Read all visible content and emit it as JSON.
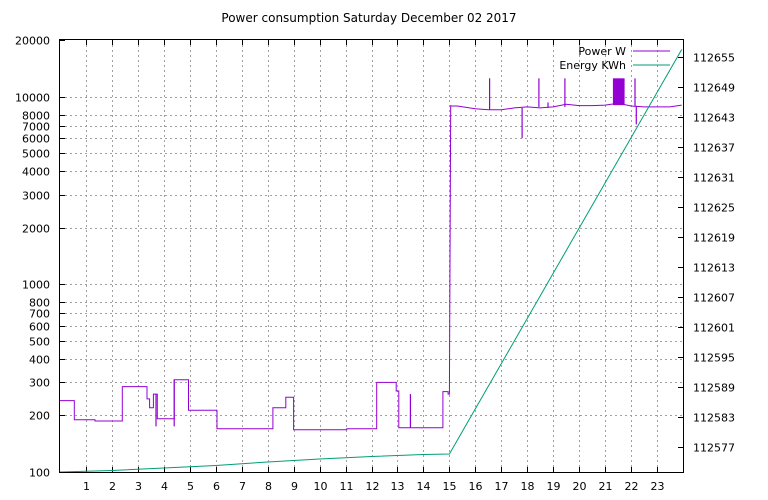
{
  "chart_data": {
    "type": "line",
    "title": "Power consumption Saturday December 02 2017",
    "xlabel": "",
    "ylabel": "",
    "y2label": "",
    "xlim": [
      0,
      24
    ],
    "ylim": [
      100,
      20000
    ],
    "y_scale": "log",
    "y2lim": [
      112572.0,
      112658.5
    ],
    "grid": true,
    "legend_position": "top-right",
    "x_ticks": [
      1,
      2,
      3,
      4,
      5,
      6,
      7,
      8,
      9,
      10,
      11,
      12,
      13,
      14,
      15,
      16,
      17,
      18,
      19,
      20,
      21,
      22,
      23
    ],
    "y_ticks": [
      100,
      200,
      300,
      400,
      500,
      600,
      700,
      800,
      1000,
      2000,
      3000,
      4000,
      5000,
      6000,
      7000,
      8000,
      10000,
      20000
    ],
    "y2_ticks": [
      112577,
      112583,
      112589,
      112595,
      112601,
      112607,
      112613,
      112619,
      112625,
      112631,
      112637,
      112643,
      112649,
      112655
    ],
    "series": [
      {
        "name": "Power W",
        "axis": "left",
        "color": "#9400d3",
        "x": [
          0,
          0.55,
          0.55,
          1.35,
          1.35,
          2.4,
          2.4,
          3.35,
          3.35,
          3.45,
          3.45,
          3.6,
          3.6,
          3.75,
          3.75,
          4.4,
          4.4,
          4.95,
          4.95,
          6.05,
          6.05,
          8.2,
          8.2,
          8.7,
          8.7,
          9.0,
          9.0,
          11.05,
          11.05,
          12.2,
          12.2,
          12.95,
          12.95,
          13.05,
          13.05,
          14.75,
          14.75,
          14.95,
          14.95,
          15.0,
          15.05,
          15.05,
          15.3,
          16.0,
          16.5,
          17.0,
          17.5,
          18.0,
          18.5,
          19.0,
          19.5,
          20.0,
          20.5,
          21.0,
          21.5,
          22.0,
          22.5,
          23.0,
          23.5,
          23.95
        ],
        "y": [
          240,
          240,
          190,
          190,
          187,
          187,
          285,
          285,
          245,
          245,
          220,
          220,
          260,
          260,
          192,
          192,
          310,
          310,
          213,
          213,
          170,
          170,
          220,
          220,
          250,
          250,
          168,
          168,
          170,
          170,
          300,
          300,
          270,
          270,
          172,
          172,
          268,
          268,
          260,
          260,
          9000,
          8900,
          8900,
          8600,
          8500,
          8500,
          8700,
          8800,
          8700,
          8800,
          9100,
          8950,
          8950,
          9000,
          9200,
          8900,
          8800,
          8800,
          8800,
          9000
        ]
      },
      {
        "name": "Energy KWh",
        "axis": "right",
        "color": "#009e73",
        "x": [
          0,
          2,
          4,
          6,
          8,
          10,
          12,
          14,
          15.0,
          23.95
        ],
        "y": [
          112572.0,
          112572.3,
          112572.8,
          112573.3,
          112574.0,
          112574.6,
          112575.1,
          112575.5,
          112575.6,
          112656.6
        ]
      }
    ],
    "spikes": [
      {
        "x": 3.7,
        "y": 175
      },
      {
        "x": 4.4,
        "y": 175
      },
      {
        "x": 13.5,
        "y": 260
      },
      {
        "x": 16.55,
        "y": 12500
      },
      {
        "x": 17.8,
        "y": 6000
      },
      {
        "x": 18.45,
        "y": 12500
      },
      {
        "x": 18.8,
        "y": 9300
      },
      {
        "x": 19.45,
        "y": 12500
      },
      {
        "x": 22.15,
        "y": 12500
      },
      {
        "x": 22.2,
        "y": 7100
      }
    ],
    "spike_block": {
      "x0": 21.3,
      "x1": 21.75,
      "y": 12500
    }
  }
}
